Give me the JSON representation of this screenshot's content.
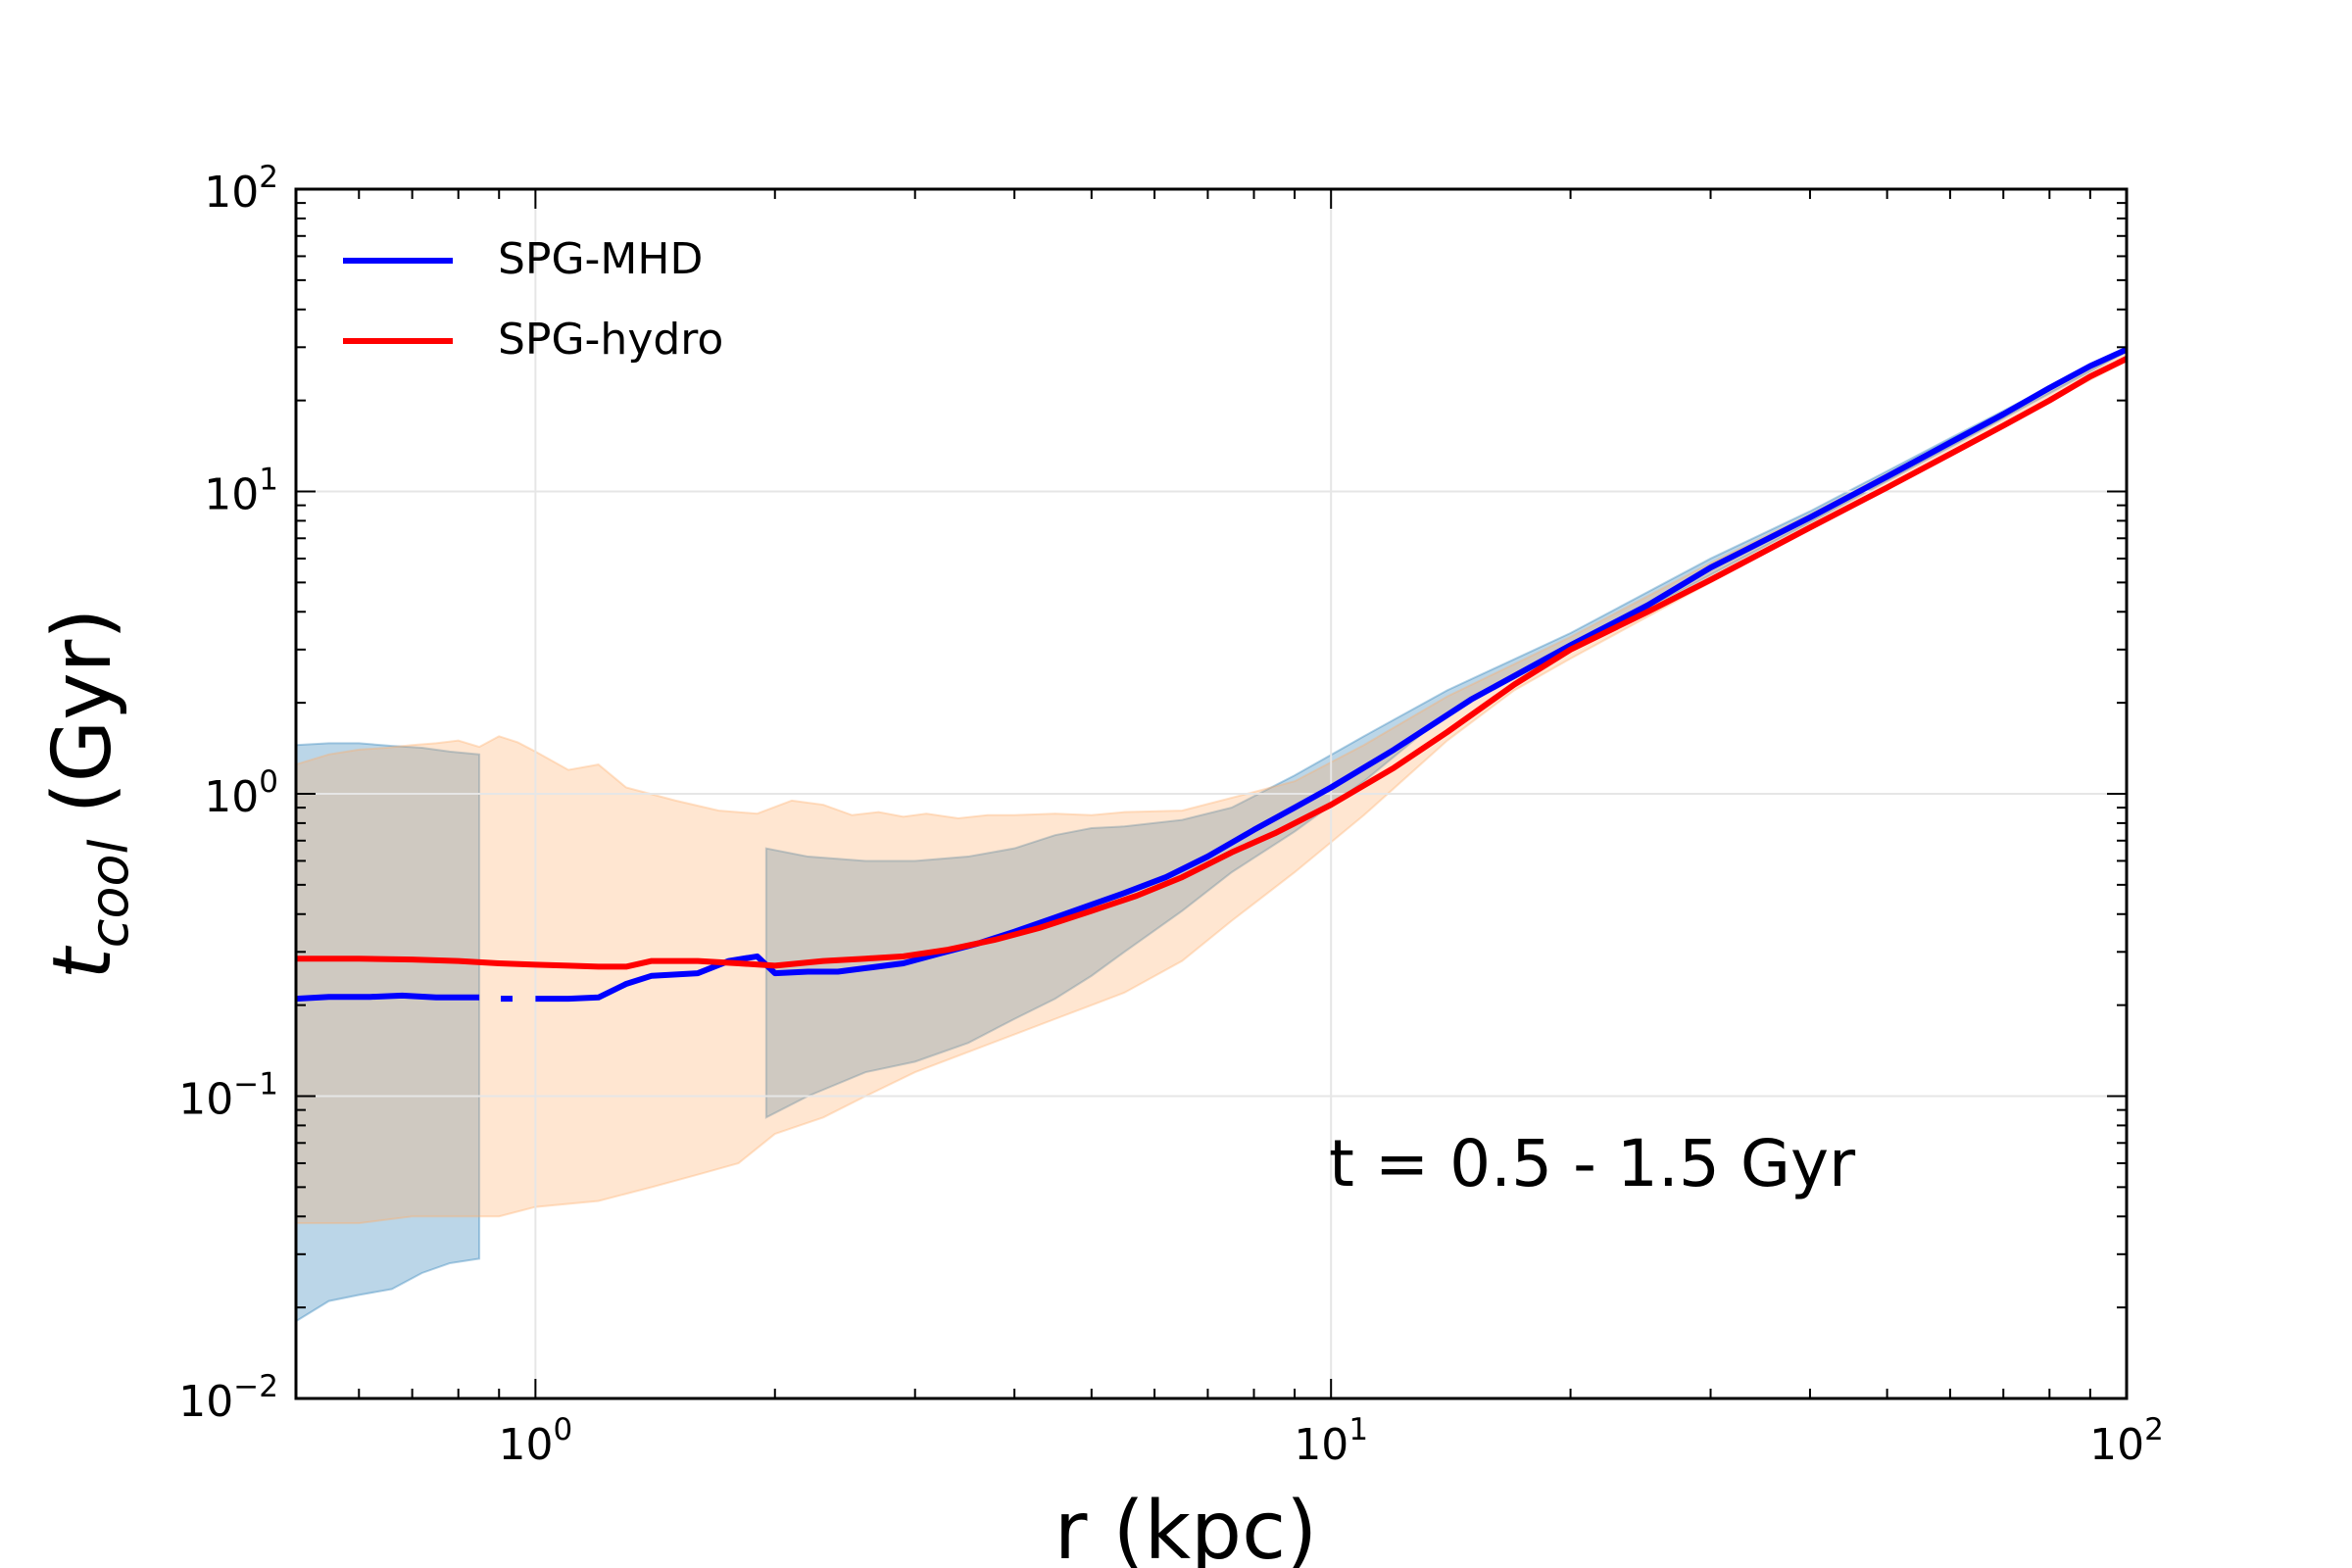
{
  "chart_data": {
    "type": "line",
    "xscale": "log",
    "yscale": "log",
    "xlim": [
      0.5,
      100
    ],
    "ylim": [
      0.01,
      100
    ],
    "xlabel": "r (kpc)",
    "ylabel_main": "t",
    "ylabel_sub": "cool",
    "ylabel_rest": " (Gyr)",
    "grid": true,
    "legend_position": "upper-left",
    "annotation": "t = 0.5 - 1.5 Gyr",
    "x_ticks": [
      {
        "value": 1,
        "base": "10",
        "exp": "0"
      },
      {
        "value": 10,
        "base": "10",
        "exp": "1"
      },
      {
        "value": 100,
        "base": "10",
        "exp": "2"
      }
    ],
    "y_ticks": [
      {
        "value": 0.01,
        "base": "10",
        "exp": "−2"
      },
      {
        "value": 0.1,
        "base": "10",
        "exp": "−1"
      },
      {
        "value": 1,
        "base": "10",
        "exp": "0"
      },
      {
        "value": 10,
        "base": "10",
        "exp": "1"
      },
      {
        "value": 100,
        "base": "10",
        "exp": "2"
      }
    ],
    "series": [
      {
        "name": "SPG-MHD",
        "color": "#0000ff",
        "segments": [
          [
            [
              0.5,
              0.21
            ],
            [
              0.55,
              0.213
            ],
            [
              0.62,
              0.213
            ],
            [
              0.68,
              0.215
            ],
            [
              0.75,
              0.212
            ],
            [
              0.85,
              0.212
            ]
          ],
          [
            [
              0.92,
              0.21
            ]
          ],
          [
            [
              1.0,
              0.21
            ],
            [
              1.1,
              0.21
            ],
            [
              1.2,
              0.212
            ],
            [
              1.3,
              0.235
            ],
            [
              1.4,
              0.25
            ],
            [
              1.6,
              0.255
            ],
            [
              1.75,
              0.28
            ],
            [
              1.9,
              0.29
            ],
            [
              2.0,
              0.255
            ],
            [
              2.2,
              0.258
            ],
            [
              2.4,
              0.258
            ],
            [
              2.6,
              0.265
            ],
            [
              2.9,
              0.275
            ],
            [
              3.2,
              0.295
            ],
            [
              3.6,
              0.32
            ],
            [
              4.0,
              0.35
            ],
            [
              4.5,
              0.39
            ],
            [
              5.0,
              0.43
            ],
            [
              5.5,
              0.47
            ],
            [
              6.2,
              0.53
            ],
            [
              7.0,
              0.62
            ],
            [
              8.0,
              0.76
            ],
            [
              9.0,
              0.9
            ],
            [
              10,
              1.05
            ],
            [
              12,
              1.4
            ],
            [
              15,
              2.05
            ],
            [
              20,
              3.1
            ],
            [
              25,
              4.2
            ],
            [
              30,
              5.6
            ],
            [
              40,
              8.2
            ],
            [
              50,
              11.2
            ],
            [
              60,
              14.5
            ],
            [
              70,
              18.0
            ],
            [
              80,
              22.0
            ],
            [
              90,
              26.0
            ],
            [
              100,
              29.5
            ]
          ]
        ],
        "band_color": "#1f77b4",
        "band_segments": [
          {
            "upper": [
              [
                0.5,
                1.45
              ],
              [
                0.55,
                1.47
              ],
              [
                0.6,
                1.47
              ],
              [
                0.66,
                1.44
              ],
              [
                0.72,
                1.42
              ],
              [
                0.78,
                1.38
              ],
              [
                0.85,
                1.35
              ]
            ],
            "lower": [
              [
                0.5,
                0.018
              ],
              [
                0.55,
                0.021
              ],
              [
                0.6,
                0.022
              ],
              [
                0.66,
                0.023
              ],
              [
                0.72,
                0.026
              ],
              [
                0.78,
                0.028
              ],
              [
                0.85,
                0.029
              ]
            ]
          },
          {
            "upper": [
              [
                1.95,
                0.66
              ],
              [
                2.2,
                0.62
              ],
              [
                2.6,
                0.6
              ],
              [
                3.0,
                0.6
              ],
              [
                3.5,
                0.62
              ],
              [
                4.0,
                0.66
              ],
              [
                4.5,
                0.73
              ],
              [
                5.0,
                0.77
              ],
              [
                5.5,
                0.78
              ],
              [
                6.5,
                0.82
              ],
              [
                7.5,
                0.9
              ],
              [
                9.0,
                1.15
              ],
              [
                11,
                1.55
              ],
              [
                14,
                2.2
              ],
              [
                20,
                3.4
              ],
              [
                30,
                6.0
              ],
              [
                40,
                8.6
              ],
              [
                60,
                15.0
              ],
              [
                100,
                30.0
              ]
            ],
            "lower": [
              [
                1.95,
                0.085
              ],
              [
                2.2,
                0.1
              ],
              [
                2.6,
                0.12
              ],
              [
                3.0,
                0.13
              ],
              [
                3.5,
                0.15
              ],
              [
                4.0,
                0.18
              ],
              [
                4.5,
                0.21
              ],
              [
                5.0,
                0.25
              ],
              [
                5.5,
                0.3
              ],
              [
                6.5,
                0.41
              ],
              [
                7.5,
                0.55
              ],
              [
                9.0,
                0.75
              ],
              [
                11,
                1.1
              ],
              [
                14,
                1.85
              ],
              [
                20,
                3.0
              ],
              [
                30,
                5.3
              ],
              [
                40,
                7.9
              ],
              [
                60,
                14.0
              ],
              [
                100,
                29.0
              ]
            ]
          }
        ]
      },
      {
        "name": "SPG-hydro",
        "color": "#ff0000",
        "segments": [
          [
            [
              0.5,
              0.285
            ],
            [
              0.6,
              0.285
            ],
            [
              0.7,
              0.283
            ],
            [
              0.8,
              0.28
            ],
            [
              0.9,
              0.275
            ],
            [
              1.0,
              0.272
            ],
            [
              1.1,
              0.27
            ],
            [
              1.2,
              0.268
            ],
            [
              1.3,
              0.268
            ],
            [
              1.4,
              0.28
            ],
            [
              1.6,
              0.28
            ],
            [
              1.8,
              0.275
            ],
            [
              2.0,
              0.27
            ],
            [
              2.3,
              0.28
            ],
            [
              2.6,
              0.285
            ],
            [
              2.9,
              0.29
            ],
            [
              3.3,
              0.305
            ],
            [
              3.8,
              0.33
            ],
            [
              4.3,
              0.36
            ],
            [
              5.0,
              0.41
            ],
            [
              5.7,
              0.46
            ],
            [
              6.5,
              0.53
            ],
            [
              7.5,
              0.64
            ],
            [
              8.5,
              0.74
            ],
            [
              10,
              0.92
            ],
            [
              12,
              1.22
            ],
            [
              14,
              1.6
            ],
            [
              17,
              2.3
            ],
            [
              20,
              3.0
            ],
            [
              25,
              4.0
            ],
            [
              30,
              5.1
            ],
            [
              40,
              7.6
            ],
            [
              50,
              10.3
            ],
            [
              60,
              13.3
            ],
            [
              70,
              16.5
            ],
            [
              80,
              20.0
            ],
            [
              90,
              24.0
            ],
            [
              100,
              27.5
            ]
          ]
        ],
        "band_color": "#ffad66",
        "band_segments": [
          {
            "upper": [
              [
                0.5,
                1.25
              ],
              [
                0.55,
                1.35
              ],
              [
                0.6,
                1.4
              ],
              [
                0.65,
                1.42
              ],
              [
                0.7,
                1.45
              ],
              [
                0.75,
                1.47
              ],
              [
                0.8,
                1.5
              ],
              [
                0.85,
                1.43
              ],
              [
                0.9,
                1.55
              ],
              [
                0.95,
                1.48
              ],
              [
                1.0,
                1.38
              ],
              [
                1.1,
                1.2
              ],
              [
                1.2,
                1.25
              ],
              [
                1.3,
                1.05
              ],
              [
                1.5,
                0.95
              ],
              [
                1.7,
                0.88
              ],
              [
                1.9,
                0.86
              ],
              [
                2.1,
                0.95
              ],
              [
                2.3,
                0.92
              ],
              [
                2.5,
                0.85
              ],
              [
                2.7,
                0.87
              ],
              [
                2.9,
                0.84
              ],
              [
                3.1,
                0.86
              ],
              [
                3.4,
                0.83
              ],
              [
                3.7,
                0.85
              ],
              [
                4.0,
                0.85
              ],
              [
                4.5,
                0.86
              ],
              [
                5.0,
                0.85
              ],
              [
                5.5,
                0.87
              ],
              [
                6.5,
                0.88
              ],
              [
                7.5,
                0.97
              ],
              [
                9.0,
                1.1
              ],
              [
                11,
                1.45
              ],
              [
                14,
                2.1
              ],
              [
                20,
                3.3
              ],
              [
                30,
                5.8
              ],
              [
                40,
                8.4
              ],
              [
                60,
                14.7
              ],
              [
                100,
                29.5
              ]
            ],
            "lower": [
              [
                0.5,
                0.038
              ],
              [
                0.6,
                0.038
              ],
              [
                0.7,
                0.04
              ],
              [
                0.8,
                0.04
              ],
              [
                0.9,
                0.04
              ],
              [
                1.0,
                0.043
              ],
              [
                1.2,
                0.045
              ],
              [
                1.4,
                0.05
              ],
              [
                1.6,
                0.055
              ],
              [
                1.8,
                0.06
              ],
              [
                2.0,
                0.075
              ],
              [
                2.3,
                0.085
              ],
              [
                2.6,
                0.1
              ],
              [
                3.0,
                0.12
              ],
              [
                3.5,
                0.14
              ],
              [
                4.0,
                0.16
              ],
              [
                4.5,
                0.18
              ],
              [
                5.0,
                0.2
              ],
              [
                5.5,
                0.22
              ],
              [
                6.5,
                0.28
              ],
              [
                7.5,
                0.38
              ],
              [
                9.0,
                0.55
              ],
              [
                11,
                0.85
              ],
              [
                14,
                1.5
              ],
              [
                17,
                2.2
              ],
              [
                20,
                2.8
              ],
              [
                30,
                5.0
              ],
              [
                40,
                7.5
              ],
              [
                60,
                13.5
              ],
              [
                100,
                27.0
              ]
            ]
          }
        ]
      }
    ]
  }
}
